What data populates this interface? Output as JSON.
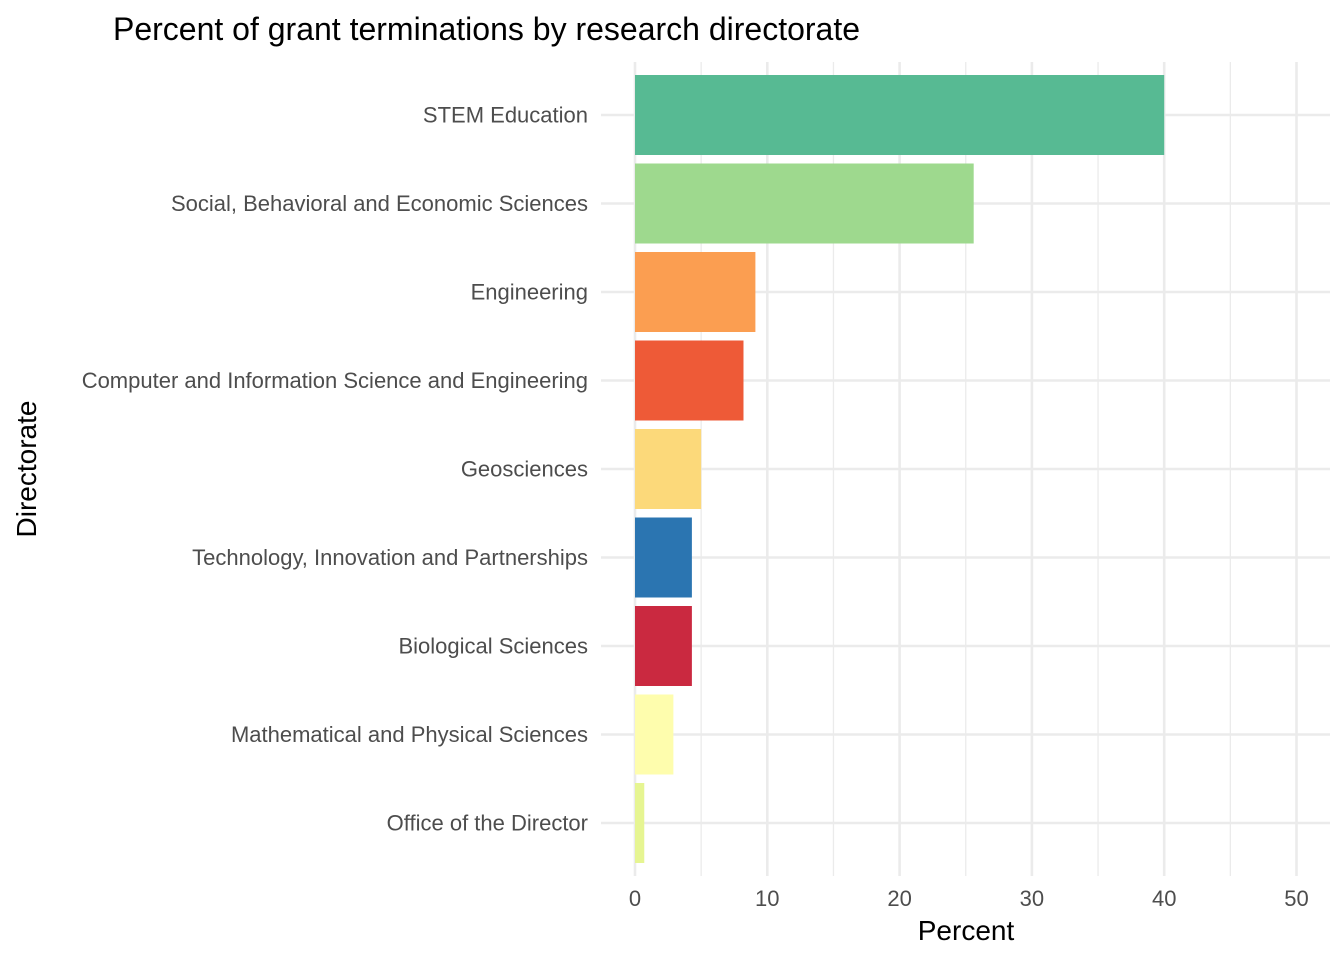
{
  "chart_data": {
    "type": "bar",
    "orientation": "horizontal",
    "title": "Percent of grant terminations by research directorate",
    "xlabel": "Percent",
    "ylabel": "Directorate",
    "xlim": [
      0,
      50
    ],
    "x_ticks": [
      0,
      10,
      20,
      30,
      40,
      50
    ],
    "grid": true,
    "legend": "none",
    "categories": [
      "STEM Education",
      "Social, Behavioral and Economic Sciences",
      "Engineering",
      "Computer and Information Science and Engineering",
      "Geosciences",
      "Technology, Innovation and Partnerships",
      "Biological Sciences",
      "Mathematical and Physical Sciences",
      "Office of the Director"
    ],
    "values": [
      40.0,
      25.6,
      9.1,
      8.2,
      5.0,
      4.3,
      4.3,
      2.9,
      0.7
    ],
    "colors": [
      "#57BA93",
      "#9ED98E",
      "#FB9E51",
      "#EE5A37",
      "#FCD97A",
      "#2B75B1",
      "#CA2940",
      "#FEFDAD",
      "#E6F592"
    ]
  }
}
